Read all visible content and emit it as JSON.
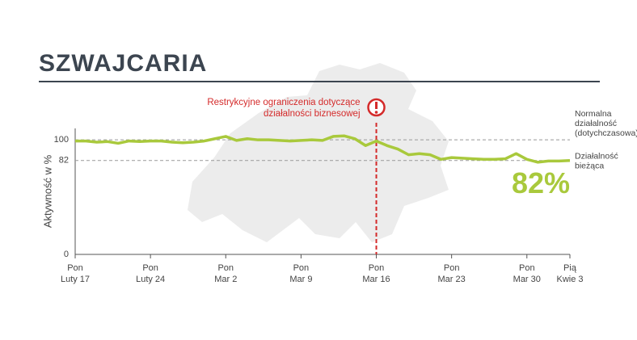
{
  "chart_data": {
    "type": "line",
    "title": "SZWAJCARIA",
    "y_label": "Aktywność w %",
    "categories": [
      [
        "Pon",
        "Luty 17"
      ],
      null,
      null,
      null,
      null,
      null,
      null,
      [
        "Pon",
        "Luty 24"
      ],
      null,
      null,
      null,
      null,
      null,
      null,
      [
        "Pon",
        "Mar 2"
      ],
      null,
      null,
      null,
      null,
      null,
      null,
      [
        "Pon",
        "Mar 9"
      ],
      null,
      null,
      null,
      null,
      null,
      null,
      [
        "Pon",
        "Mar 16"
      ],
      null,
      null,
      null,
      null,
      null,
      null,
      [
        "Pon",
        "Mar 23"
      ],
      null,
      null,
      null,
      null,
      null,
      null,
      [
        "Pon",
        "Mar 30"
      ],
      null,
      null,
      null,
      [
        "Pią",
        "Kwie 3"
      ]
    ],
    "series": [
      {
        "color": "#a9c93c",
        "values": [
          99,
          99,
          98,
          98.5,
          97,
          99,
          98.5,
          99,
          99,
          98,
          97.5,
          98,
          99,
          101,
          103,
          99.5,
          101,
          100,
          100,
          99.5,
          99,
          99.5,
          100,
          99.5,
          103,
          103.5,
          101,
          95,
          99,
          95,
          92,
          87,
          88,
          87,
          83,
          84.5,
          84,
          83.5,
          83,
          83,
          83.5,
          88,
          83,
          80.5,
          81.5,
          81.5,
          82
        ],
        "value_labels": [
          null,
          null,
          null,
          null,
          null,
          null,
          null,
          null,
          null,
          null,
          null,
          null,
          null,
          null,
          null,
          null,
          null,
          null,
          null,
          null,
          null,
          null,
          null,
          null,
          null,
          null,
          null,
          null,
          null,
          null,
          null,
          null,
          null,
          null,
          null,
          null,
          null,
          null,
          null,
          null,
          null,
          null,
          null,
          null,
          null,
          null,
          "82%"
        ]
      }
    ],
    "ylim": [
      0,
      110
    ],
    "yticks": [
      0,
      82,
      100
    ],
    "grid": true,
    "event": {
      "text": [
        "Restrykcyjne ograniczenia dotyczące",
        "działalności biznesowej"
      ],
      "color": "#d42a2a"
    },
    "reference_labels": [
      [
        "Normalna",
        "działalność",
        "(dotychczasowa)"
      ],
      [
        "Działalność",
        "bieżąca"
      ]
    ]
  }
}
